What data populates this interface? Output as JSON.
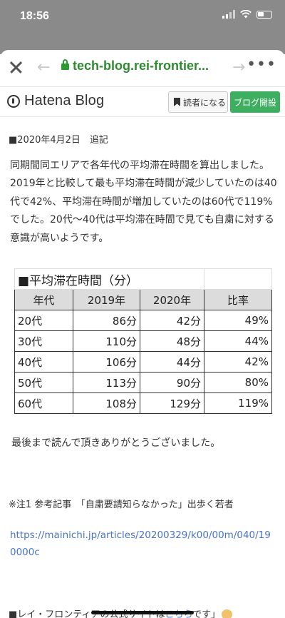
{
  "status": {
    "time": "18:56"
  },
  "browser": {
    "url": "tech-blog.rei-frontier..."
  },
  "blog": {
    "name": "Hatena Blog",
    "reader_label": "読者になる",
    "open_blog_label": "ブログ開設"
  },
  "article": {
    "postscript": "■2020年4月2日　追記",
    "paragraph": "同期間同エリアで各年代の平均滞在時間を算出しました。2019年と比較して最も平均滞在時間が減少していたのは40代で42%、平均滞在時間が増加していたのは60代で119%でした。20代〜40代は平均滞在時間で見ても自粛に対する意識が高いようです。",
    "closing": "最後まで読んで頂きありがとうございました。",
    "note": "※注1 参考記事　「自粛要請知らなかった」出歩く若者",
    "link": "https://mainichi.jp/articles/20200329/k00/00m/040/190000c",
    "footer_prefix": "■レイ・フロンティアの公式サイトは",
    "footer_link": "こちら",
    "footer_suffix": "です」"
  },
  "table": {
    "title": "■平均滞在時間（分）",
    "headers": [
      "年代",
      "2019年",
      "2020年",
      "比率"
    ],
    "rows": [
      [
        "20代",
        "86分",
        "42分",
        "49%"
      ],
      [
        "30代",
        "110分",
        "48分",
        "44%"
      ],
      [
        "40代",
        "106分",
        "44分",
        "42%"
      ],
      [
        "50代",
        "113分",
        "90分",
        "80%"
      ],
      [
        "60代",
        "108分",
        "129分",
        "119%"
      ]
    ]
  }
}
